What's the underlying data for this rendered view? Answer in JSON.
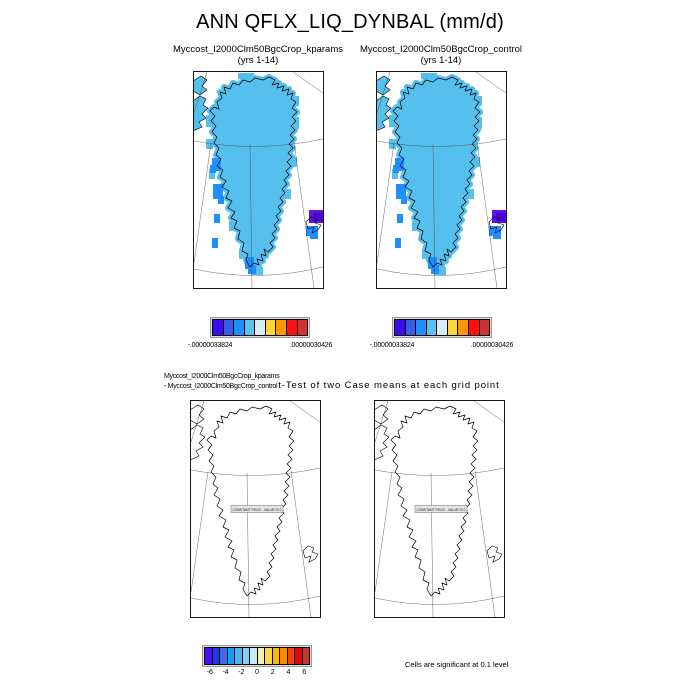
{
  "title": "ANN QFLX_LIQ_DYNBAL (mm/d)",
  "panels": {
    "top_left": {
      "name": "Myccost_I2000Clm50BgcCrop_kparams",
      "years": "(yrs 1-14)"
    },
    "top_right": {
      "name": "Myccost_I2000Clm50BgcCrop_control",
      "years": "(yrs 1-14)"
    }
  },
  "diff_caption": {
    "line1": "Myccost_I2000Clm50BgcCrop_kparams",
    "line2": "- Myccost_I2000Clm50BgcCrop_control",
    "suffix": "t-Test of two Case means at each grid point"
  },
  "top_colorbar": {
    "min_label": "-.00000033824",
    "max_label": ".00000030426",
    "colors": [
      "#3B0BF0",
      "#3A5CE6",
      "#1E90FF",
      "#55C6F2",
      "#D8ECF8",
      "#FFD53C",
      "#FF9800",
      "#FF0F0F",
      "#C93530"
    ]
  },
  "bottom_colorbar": {
    "tick_labels": [
      "-6",
      "-4",
      "-2",
      "0",
      "2",
      "4",
      "6"
    ],
    "colors": [
      "#4A0DF5",
      "#2136EE",
      "#3C6AE8",
      "#0AA2FF",
      "#3FBCF5",
      "#7ED0F5",
      "#C9E8F8",
      "#F8F2A0",
      "#FFD83A",
      "#FFB400",
      "#FF8C00",
      "#FF4000",
      "#E80000",
      "#C23830"
    ]
  },
  "constant_field_label": "CONSTANT FIELD - VALUE IS 0",
  "significance_note": "Cells are significant at 0.1 level",
  "colors": {
    "ice_fill": "#55BFEE",
    "patch_blue": "#1E8FFF",
    "patch_purple": "#5A14E6",
    "patch_purple_dark": "#4A00D0",
    "coast": "#000000",
    "graticule": "#444444"
  },
  "chart_data": [
    {
      "type": "heatmap",
      "subtype": "filled polar-stereographic map of Greenland",
      "title": "ANN QFLX_LIQ_DYNBAL (mm/d)",
      "panels": [
        "Myccost_I2000Clm50BgcCrop_kparams (yrs 1-14)",
        "Myccost_I2000Clm50BgcCrop_control (yrs 1-14)"
      ],
      "value_range": [
        -3.3824e-07,
        3.0426e-07
      ],
      "colorbar_min_label": "-.00000033824",
      "colorbar_max_label": ".00000030426",
      "n_colors": 9,
      "legend_position": "below each panel",
      "description": "Both panels are nearly identical: uniform light-blue (near-zero, slightly negative) values covering the Greenland ice sheet, darker blue cells along the southwest coast and southern tip, and a deep blue/purple minimum patch over Iceland in the lower-right of each map."
    },
    {
      "type": "heatmap",
      "subtype": "outline polar-stereographic map of Greenland",
      "title": "t-Test of two Case means at each grid point",
      "panels": [
        "Myccost_I2000Clm50BgcCrop_kparams - Myccost_I2000Clm50BgcCrop_control"
      ],
      "tick_values": [
        -6,
        -4,
        -2,
        0,
        2,
        4,
        6
      ],
      "n_colors": 14,
      "constant_field": "CONSTANT FIELD - VALUE IS 0",
      "note": "Cells are significant at 0.1 level",
      "description": "Both bottom panels show no shading (constant field, value 0); only coastlines, graticule lines and a boxed constant-field message are drawn."
    }
  ]
}
